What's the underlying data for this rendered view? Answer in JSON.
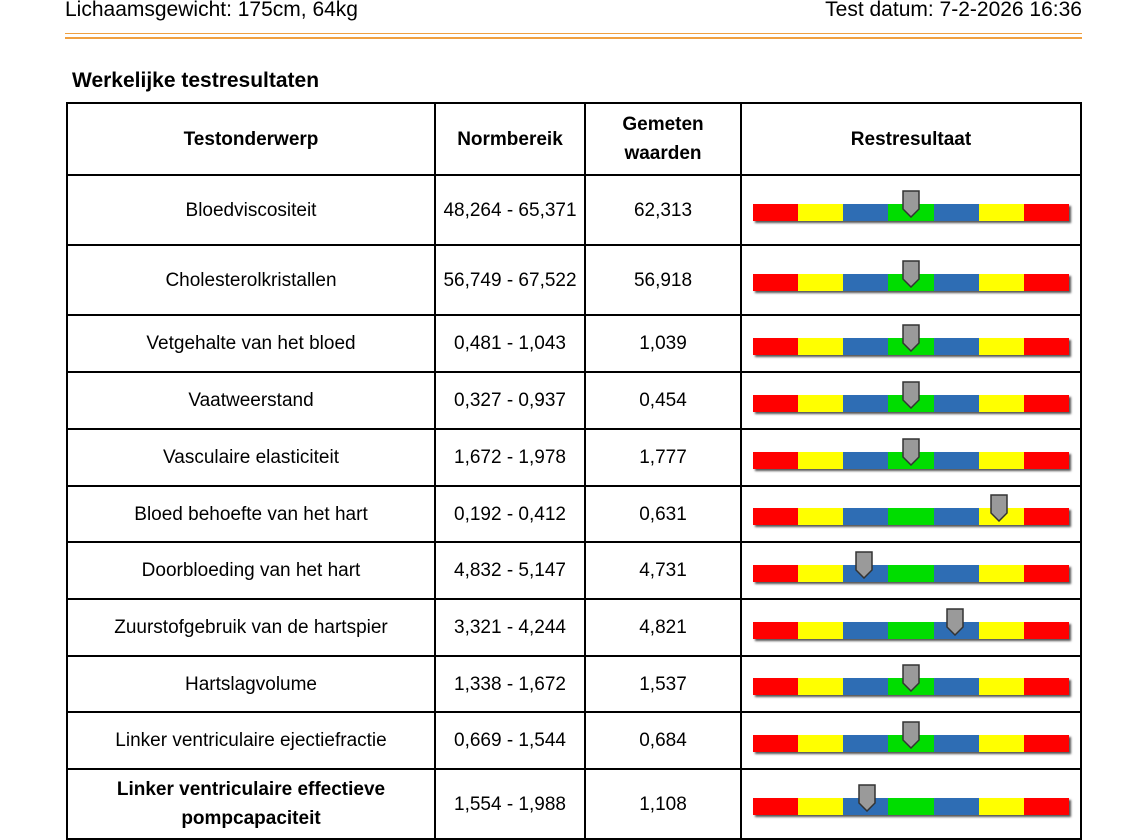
{
  "header": {
    "left": "Lichaamsgewicht: 175cm, 64kg",
    "right": "Test datum: 7-2-2026 16:36"
  },
  "section_title": "Werkelijke testresultaten",
  "table": {
    "columns": [
      "Testonderwerp",
      "Normbereik",
      "Gemeten waarden",
      "Restresultaat"
    ],
    "rows": [
      {
        "name": "Bloedviscositeit",
        "range": "48,264 - 65,371",
        "measured": "62,313",
        "gauge_position": 0.5
      },
      {
        "name": "Cholesterolkristallen",
        "range": "56,749 - 67,522",
        "measured": "56,918",
        "gauge_position": 0.5
      },
      {
        "name": "Vetgehalte van het bloed",
        "range": "0,481 - 1,043",
        "measured": "1,039",
        "gauge_position": 0.5
      },
      {
        "name": "Vaatweerstand",
        "range": "0,327 - 0,937",
        "measured": "0,454",
        "gauge_position": 0.5
      },
      {
        "name": "Vasculaire elasticiteit",
        "range": "1,672 - 1,978",
        "measured": "1,777",
        "gauge_position": 0.5
      },
      {
        "name": "Bloed behoefte van het hart",
        "range": "0,192 - 0,412",
        "measured": "0,631",
        "gauge_position": 0.78
      },
      {
        "name": "Doorbloeding van het hart",
        "range": "4,832 - 5,147",
        "measured": "4,731",
        "gauge_position": 0.35
      },
      {
        "name": "Zuurstofgebruik van de hartspier",
        "range": "3,321 - 4,244",
        "measured": "4,821",
        "gauge_position": 0.64
      },
      {
        "name": "Hartslagvolume",
        "range": "1,338 - 1,672",
        "measured": "1,537",
        "gauge_position": 0.5
      },
      {
        "name": "Linker ventriculaire ejectiefractie",
        "range": "0,669 - 1,544",
        "measured": "0,684",
        "gauge_position": 0.5
      },
      {
        "name": "Linker ventriculaire effectieve pompcapaciteit",
        "range": "1,554 - 1,988",
        "measured": "1,108",
        "gauge_position": 0.36,
        "bold": true
      }
    ]
  }
}
